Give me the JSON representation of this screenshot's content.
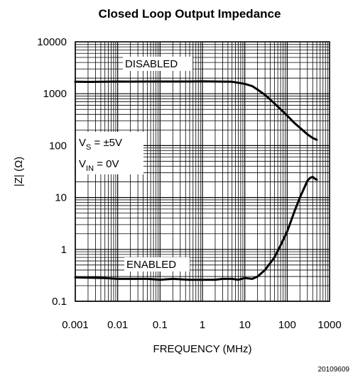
{
  "chart_data": {
    "type": "line",
    "title": "Closed Loop Output Impedance",
    "xlabel": "FREQUENCY (MHz)",
    "ylabel": "|Z| (Ω)",
    "x_scale": "log",
    "y_scale": "log",
    "xlim": [
      0.001,
      1000
    ],
    "ylim": [
      0.1,
      10000
    ],
    "grid": true,
    "x_tick_labels": [
      "0.001",
      "0.01",
      "0.1",
      "1",
      "10",
      "100",
      "1000"
    ],
    "y_tick_labels": [
      "0.1",
      "1",
      "10",
      "100",
      "1000",
      "10000"
    ],
    "annotations": {
      "disabled": "DISABLED",
      "enabled": "ENABLED",
      "vs_main": "V",
      "vs_sub": "S",
      "vs_rest": " = ±5V",
      "vin_main": "V",
      "vin_sub": "IN",
      "vin_rest": " = 0V"
    },
    "series": [
      {
        "x": [
          0.001,
          0.002,
          0.005,
          0.01,
          0.02,
          0.05,
          0.1,
          0.2,
          0.5,
          1,
          2,
          5,
          10,
          15,
          20,
          30,
          50,
          70,
          100,
          150,
          200,
          300,
          400,
          500
        ],
        "y": [
          1700,
          1690,
          1700,
          1720,
          1710,
          1720,
          1720,
          1720,
          1720,
          1730,
          1720,
          1700,
          1550,
          1400,
          1200,
          950,
          650,
          500,
          380,
          270,
          220,
          165,
          140,
          130
        ]
      },
      {
        "x": [
          0.001,
          0.002,
          0.005,
          0.01,
          0.02,
          0.05,
          0.1,
          0.2,
          0.5,
          1,
          2,
          3,
          5,
          7,
          10,
          15,
          20,
          30,
          50,
          70,
          100,
          150,
          200,
          300,
          350,
          400,
          450,
          500
        ],
        "y": [
          0.29,
          0.285,
          0.28,
          0.27,
          0.27,
          0.27,
          0.26,
          0.27,
          0.26,
          0.26,
          0.26,
          0.27,
          0.27,
          0.26,
          0.28,
          0.27,
          0.3,
          0.4,
          0.7,
          1.2,
          2.2,
          5.5,
          10,
          21,
          24,
          25,
          23,
          22
        ]
      }
    ]
  },
  "figure_number": "20109609"
}
